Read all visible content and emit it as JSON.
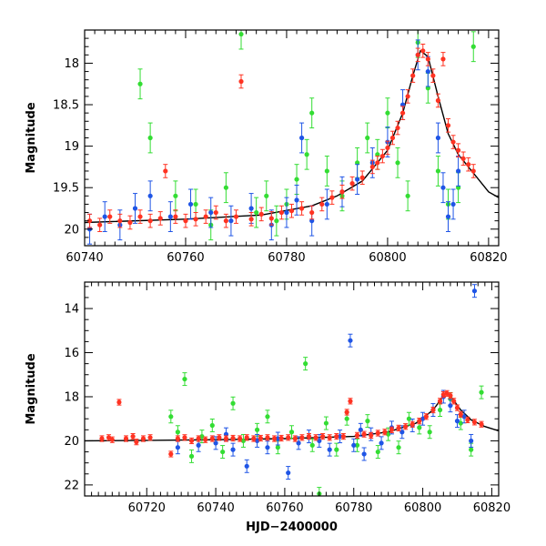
{
  "chart_data": [
    {
      "type": "scatter",
      "id": "top",
      "title": "",
      "xlabel": "",
      "ylabel": "Magnitude",
      "xlim": [
        60740,
        60822
      ],
      "ylim": [
        20.2,
        17.6
      ],
      "y_inverted": true,
      "grid": false,
      "x_ticks": [
        60740,
        60760,
        60780,
        60800,
        60820
      ],
      "y_ticks": [
        18,
        18.5,
        19,
        19.5,
        20
      ],
      "series_colors": {
        "blue": "#1f55e6",
        "green": "#33dd33",
        "red": "#ff3322"
      },
      "model_curve": {
        "color": "#000000",
        "points": [
          [
            60740,
            19.92
          ],
          [
            60760,
            19.88
          ],
          [
            60775,
            19.83
          ],
          [
            60785,
            19.72
          ],
          [
            60790,
            19.6
          ],
          [
            60795,
            19.42
          ],
          [
            60800,
            19.05
          ],
          [
            60803,
            18.6
          ],
          [
            60805,
            18.15
          ],
          [
            60806.5,
            17.85
          ],
          [
            60808,
            17.92
          ],
          [
            60810,
            18.4
          ],
          [
            60812,
            18.85
          ],
          [
            60814,
            19.1
          ],
          [
            60816,
            19.25
          ],
          [
            60818,
            19.4
          ],
          [
            60820,
            19.55
          ],
          [
            60822,
            19.62
          ]
        ]
      },
      "red_points": [
        [
          60741,
          19.9
        ],
        [
          60743,
          19.95
        ],
        [
          60745,
          19.85
        ],
        [
          60747,
          19.9
        ],
        [
          60749,
          19.92
        ],
        [
          60751,
          19.85
        ],
        [
          60753,
          19.9
        ],
        [
          60755,
          19.87
        ],
        [
          60756,
          19.3
        ],
        [
          60758,
          19.85
        ],
        [
          60760,
          19.9
        ],
        [
          60762,
          19.88
        ],
        [
          60764,
          19.85
        ],
        [
          60766,
          19.8
        ],
        [
          60768,
          19.9
        ],
        [
          60770,
          19.85
        ],
        [
          60771,
          18.22
        ],
        [
          60773,
          19.88
        ],
        [
          60775,
          19.82
        ],
        [
          60777,
          19.87
        ],
        [
          60779,
          19.8
        ],
        [
          60781,
          19.78
        ],
        [
          60783,
          19.75
        ],
        [
          60785,
          19.8
        ],
        [
          60787,
          19.7
        ],
        [
          60789,
          19.62
        ],
        [
          60791,
          19.55
        ],
        [
          60793,
          19.45
        ],
        [
          60795,
          19.38
        ],
        [
          60797,
          19.25
        ],
        [
          60798,
          19.2
        ],
        [
          60799,
          19.12
        ],
        [
          60800,
          19.02
        ],
        [
          60801,
          18.9
        ],
        [
          60802,
          18.78
        ],
        [
          60803,
          18.6
        ],
        [
          60804,
          18.4
        ],
        [
          60805,
          18.15
        ],
        [
          60806,
          17.9
        ],
        [
          60807,
          17.85
        ],
        [
          60808,
          17.95
        ],
        [
          60809,
          18.15
        ],
        [
          60810,
          18.45
        ],
        [
          60811,
          17.95
        ],
        [
          60812,
          18.75
        ],
        [
          60813,
          18.95
        ],
        [
          60814,
          19.05
        ],
        [
          60815,
          19.15
        ],
        [
          60816,
          19.22
        ],
        [
          60817,
          19.3
        ]
      ],
      "blue_points": [
        [
          60741,
          20.0
        ],
        [
          60744,
          19.85
        ],
        [
          60747,
          19.95
        ],
        [
          60750,
          19.75
        ],
        [
          60753,
          19.6
        ],
        [
          60757,
          19.85
        ],
        [
          60761,
          19.7
        ],
        [
          60765,
          19.8
        ],
        [
          60769,
          19.9
        ],
        [
          60773,
          19.75
        ],
        [
          60777,
          19.95
        ],
        [
          60780,
          19.8
        ],
        [
          60782,
          19.65
        ],
        [
          60783,
          18.9
        ],
        [
          60785,
          19.9
        ],
        [
          60788,
          19.7
        ],
        [
          60791,
          19.55
        ],
        [
          60794,
          19.4
        ],
        [
          60797,
          19.2
        ],
        [
          60800,
          18.95
        ],
        [
          60803,
          18.5
        ],
        [
          60806,
          17.9
        ],
        [
          60808,
          18.1
        ],
        [
          60810,
          18.9
        ],
        [
          60811,
          19.5
        ],
        [
          60812,
          19.85
        ],
        [
          60813,
          19.7
        ],
        [
          60814,
          19.3
        ]
      ],
      "green_points": [
        [
          60751,
          18.25
        ],
        [
          60753,
          18.9
        ],
        [
          60758,
          19.6
        ],
        [
          60762,
          19.7
        ],
        [
          60765,
          19.95
        ],
        [
          60768,
          19.5
        ],
        [
          60771,
          17.65
        ],
        [
          60774,
          19.8
        ],
        [
          60776,
          19.6
        ],
        [
          60778,
          19.9
        ],
        [
          60780,
          19.7
        ],
        [
          60782,
          19.4
        ],
        [
          60784,
          19.1
        ],
        [
          60785,
          18.6
        ],
        [
          60788,
          19.3
        ],
        [
          60791,
          19.6
        ],
        [
          60794,
          19.2
        ],
        [
          60796,
          18.9
        ],
        [
          60798,
          19.1
        ],
        [
          60800,
          18.6
        ],
        [
          60802,
          19.2
        ],
        [
          60804,
          19.6
        ],
        [
          60806,
          17.75
        ],
        [
          60808,
          18.3
        ],
        [
          60810,
          19.3
        ],
        [
          60812,
          19.7
        ],
        [
          60814,
          19.5
        ],
        [
          60817,
          17.8
        ]
      ]
    },
    {
      "type": "scatter",
      "id": "bottom",
      "title": "",
      "xlabel": "HJD−2400000",
      "ylabel": "Magnitude",
      "xlim": [
        60702,
        60822
      ],
      "ylim": [
        22.5,
        12.8
      ],
      "y_inverted": true,
      "grid": false,
      "x_ticks": [
        60720,
        60740,
        60760,
        60780,
        60800,
        60820
      ],
      "y_ticks": [
        14,
        16,
        18,
        20,
        22
      ],
      "series_colors": {
        "blue": "#1f55e6",
        "green": "#33dd33",
        "red": "#ff3322"
      },
      "model_curve": {
        "color": "#000000",
        "points": [
          [
            60702,
            20.0
          ],
          [
            60720,
            19.98
          ],
          [
            60740,
            19.95
          ],
          [
            60760,
            19.9
          ],
          [
            60780,
            19.8
          ],
          [
            60790,
            19.6
          ],
          [
            60798,
            19.2
          ],
          [
            60803,
            18.6
          ],
          [
            60806.5,
            17.85
          ],
          [
            60808,
            17.95
          ],
          [
            60811,
            18.6
          ],
          [
            60814,
            19.05
          ],
          [
            60818,
            19.35
          ],
          [
            60822,
            19.55
          ]
        ]
      },
      "red_points": [
        [
          60707,
          19.9
        ],
        [
          60709,
          19.85
        ],
        [
          60710,
          19.95
        ],
        [
          60712,
          18.25
        ],
        [
          60714,
          19.9
        ],
        [
          60716,
          19.8
        ],
        [
          60717,
          20.05
        ],
        [
          60719,
          19.9
        ],
        [
          60721,
          19.85
        ],
        [
          60727,
          20.6
        ],
        [
          60729,
          19.9
        ],
        [
          60731,
          19.85
        ],
        [
          60733,
          20.0
        ],
        [
          60735,
          19.9
        ],
        [
          60737,
          19.95
        ],
        [
          60739,
          19.9
        ],
        [
          60741,
          19.85
        ],
        [
          60743,
          19.9
        ],
        [
          60745,
          19.88
        ],
        [
          60747,
          19.9
        ],
        [
          60749,
          19.85
        ],
        [
          60751,
          19.9
        ],
        [
          60753,
          19.88
        ],
        [
          60755,
          19.85
        ],
        [
          60757,
          19.9
        ],
        [
          60759,
          19.88
        ],
        [
          60761,
          19.85
        ],
        [
          60763,
          19.9
        ],
        [
          60765,
          19.85
        ],
        [
          60767,
          19.8
        ],
        [
          60769,
          19.85
        ],
        [
          60771,
          19.8
        ],
        [
          60773,
          19.85
        ],
        [
          60775,
          19.8
        ],
        [
          60777,
          19.8
        ],
        [
          60778,
          18.7
        ],
        [
          60779,
          18.2
        ],
        [
          60781,
          19.75
        ],
        [
          60783,
          19.7
        ],
        [
          60785,
          19.75
        ],
        [
          60787,
          19.65
        ],
        [
          60789,
          19.6
        ],
        [
          60791,
          19.5
        ],
        [
          60793,
          19.42
        ],
        [
          60795,
          19.35
        ],
        [
          60797,
          19.25
        ],
        [
          60799,
          19.1
        ],
        [
          60801,
          18.9
        ],
        [
          60803,
          18.6
        ],
        [
          60805,
          18.2
        ],
        [
          60806,
          17.9
        ],
        [
          60807,
          17.85
        ],
        [
          60808,
          17.95
        ],
        [
          60809,
          18.2
        ],
        [
          60810,
          18.5
        ],
        [
          60811,
          18.8
        ],
        [
          60813,
          19.05
        ],
        [
          60815,
          19.15
        ],
        [
          60817,
          19.25
        ]
      ],
      "blue_points": [
        [
          60729,
          20.3
        ],
        [
          60735,
          20.2
        ],
        [
          60740,
          20.1
        ],
        [
          60743,
          19.7
        ],
        [
          60745,
          20.4
        ],
        [
          60749,
          21.15
        ],
        [
          60752,
          20.0
        ],
        [
          60755,
          20.3
        ],
        [
          60758,
          19.9
        ],
        [
          60761,
          21.45
        ],
        [
          60764,
          20.1
        ],
        [
          60767,
          19.8
        ],
        [
          60770,
          20.0
        ],
        [
          60773,
          20.4
        ],
        [
          60776,
          19.8
        ],
        [
          60779,
          15.45
        ],
        [
          60780,
          20.2
        ],
        [
          60782,
          19.5
        ],
        [
          60783,
          20.6
        ],
        [
          60785,
          19.7
        ],
        [
          60788,
          20.1
        ],
        [
          60791,
          19.4
        ],
        [
          60794,
          19.6
        ],
        [
          60797,
          19.3
        ],
        [
          60800,
          19.0
        ],
        [
          60803,
          18.6
        ],
        [
          60806,
          18.0
        ],
        [
          60808,
          18.4
        ],
        [
          60810,
          19.1
        ],
        [
          60812,
          18.9
        ],
        [
          60814,
          20.0
        ],
        [
          60815,
          13.2
        ]
      ],
      "green_points": [
        [
          60727,
          18.9
        ],
        [
          60729,
          19.6
        ],
        [
          60731,
          17.2
        ],
        [
          60733,
          20.7
        ],
        [
          60736,
          19.8
        ],
        [
          60739,
          19.3
        ],
        [
          60742,
          20.5
        ],
        [
          60745,
          18.3
        ],
        [
          60748,
          20.0
        ],
        [
          60752,
          19.5
        ],
        [
          60755,
          18.9
        ],
        [
          60758,
          20.3
        ],
        [
          60762,
          19.6
        ],
        [
          60766,
          16.5
        ],
        [
          60768,
          20.2
        ],
        [
          60770,
          22.4
        ],
        [
          60772,
          19.2
        ],
        [
          60775,
          20.4
        ],
        [
          60778,
          19.0
        ],
        [
          60781,
          20.2
        ],
        [
          60784,
          19.1
        ],
        [
          60787,
          20.5
        ],
        [
          60790,
          19.7
        ],
        [
          60793,
          20.3
        ],
        [
          60796,
          19.0
        ],
        [
          60799,
          19.4
        ],
        [
          60802,
          19.6
        ],
        [
          60805,
          18.6
        ],
        [
          60808,
          18.1
        ],
        [
          60811,
          19.2
        ],
        [
          60814,
          20.4
        ],
        [
          60817,
          17.8
        ]
      ]
    }
  ]
}
